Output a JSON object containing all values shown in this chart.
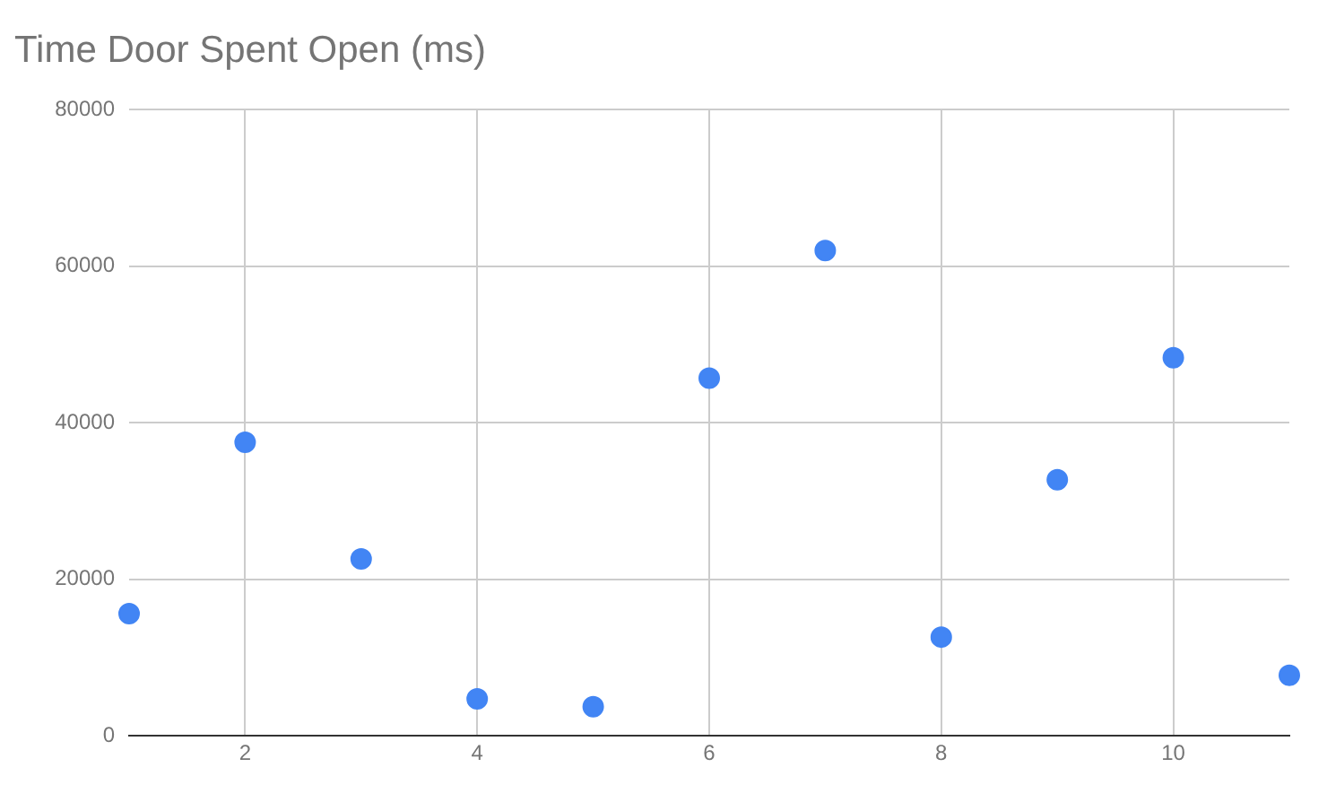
{
  "chart_data": {
    "type": "scatter",
    "title": "Time Door Spent Open (ms)",
    "x": [
      1,
      2,
      3,
      4,
      5,
      6,
      7,
      8,
      9,
      10,
      11
    ],
    "series": [
      {
        "color": "#4285f4",
        "values": [
          15600,
          37500,
          22600,
          4700,
          3700,
          45700,
          62000,
          12600,
          32700,
          48300,
          7700
        ]
      }
    ],
    "xlim": [
      1,
      11
    ],
    "xticks": [
      2,
      4,
      6,
      8,
      10
    ],
    "ylim": [
      0,
      80000
    ],
    "yticks": [
      0,
      20000,
      40000,
      60000,
      80000
    ],
    "grid": true,
    "legend": false,
    "marker": "circle"
  }
}
